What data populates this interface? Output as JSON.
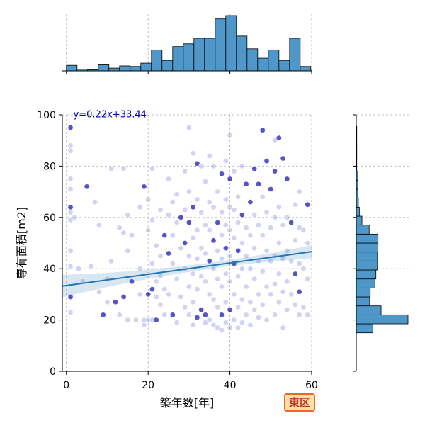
{
  "chart_data": {
    "type": "scatter",
    "xlabel": "築年数[年]",
    "ylabel": "専有面積[m2]",
    "xlim": [
      -1,
      60
    ],
    "ylim": [
      0,
      100
    ],
    "x_ticks": [
      "0",
      "20",
      "40",
      "60"
    ],
    "y_ticks": [
      "0",
      "20",
      "40",
      "60",
      "80",
      "100"
    ],
    "grid": true,
    "regression": {
      "label": "y=0.22x+33.44",
      "slope": 0.22,
      "intercept": 33.44,
      "color": "#1f77b4",
      "band_color": "#1f77b4"
    },
    "point_colors": {
      "light": "#9a9ee0",
      "dark": "#1c1ab8"
    },
    "hist_color": "#4f97c9",
    "top_histogram": {
      "bin_edges": [
        0,
        2.6,
        5.2,
        7.8,
        10.4,
        13,
        15.6,
        18.2,
        20.8,
        23.4,
        26,
        28.6,
        31.2,
        33.8,
        36.4,
        39,
        41.6,
        44.2,
        46.8,
        49.4,
        52,
        54.6,
        57.2,
        59.8
      ],
      "counts": [
        10,
        3,
        2,
        11,
        5,
        9,
        8,
        14,
        38,
        19,
        44,
        49,
        59,
        59,
        94,
        100,
        63,
        40,
        23,
        38,
        19,
        59,
        8
      ]
    },
    "right_histogram": {
      "bin_edges": [
        15,
        18.5,
        22,
        25.5,
        29,
        32.5,
        36,
        39.5,
        43,
        46.5,
        50,
        53.5,
        57,
        60.5,
        64,
        67.5,
        71,
        74.5,
        78,
        81.5,
        85,
        88.5,
        92,
        95.5
      ],
      "counts": [
        32,
        100,
        48,
        26,
        27,
        36,
        38,
        41,
        41,
        42,
        42,
        25,
        11,
        6,
        4,
        3,
        3,
        3,
        1,
        1,
        1,
        1,
        1
      ]
    },
    "points": [
      [
        1,
        95
      ],
      [
        1,
        88
      ],
      [
        1,
        86
      ],
      [
        1,
        75
      ],
      [
        1,
        71
      ],
      [
        1,
        64
      ],
      [
        1,
        62
      ],
      [
        1,
        59
      ],
      [
        1,
        47
      ],
      [
        1,
        41
      ],
      [
        1,
        29
      ],
      [
        1,
        23
      ],
      [
        2,
        60
      ],
      [
        3,
        40
      ],
      [
        4,
        35
      ],
      [
        5,
        72
      ],
      [
        6,
        41
      ],
      [
        7,
        66
      ],
      [
        8,
        57
      ],
      [
        8,
        31
      ],
      [
        9,
        22
      ],
      [
        10,
        36
      ],
      [
        10,
        27
      ],
      [
        11,
        79
      ],
      [
        11,
        43
      ],
      [
        12,
        27
      ],
      [
        13,
        56
      ],
      [
        13,
        22
      ],
      [
        14,
        79
      ],
      [
        14,
        54
      ],
      [
        14,
        29
      ],
      [
        15,
        61
      ],
      [
        15,
        47
      ],
      [
        15,
        20
      ],
      [
        16,
        53
      ],
      [
        16,
        35
      ],
      [
        17,
        20
      ],
      [
        18,
        64
      ],
      [
        18,
        40
      ],
      [
        18,
        30
      ],
      [
        19,
        72
      ],
      [
        19,
        20
      ],
      [
        19,
        18
      ],
      [
        20,
        67
      ],
      [
        20,
        55
      ],
      [
        20,
        30
      ],
      [
        20,
        20
      ],
      [
        21,
        79
      ],
      [
        21,
        59
      ],
      [
        21,
        42
      ],
      [
        21,
        32
      ],
      [
        21,
        20
      ],
      [
        22,
        49
      ],
      [
        22,
        35
      ],
      [
        22,
        29
      ],
      [
        22,
        20
      ],
      [
        23,
        63
      ],
      [
        23,
        45
      ],
      [
        23,
        37
      ],
      [
        23,
        26
      ],
      [
        24,
        53
      ],
      [
        24,
        32
      ],
      [
        24,
        22
      ],
      [
        25,
        75
      ],
      [
        25,
        61
      ],
      [
        25,
        46
      ],
      [
        25,
        30
      ],
      [
        26,
        66
      ],
      [
        26,
        53
      ],
      [
        26,
        42
      ],
      [
        26,
        22
      ],
      [
        27,
        69
      ],
      [
        27,
        58
      ],
      [
        27,
        36
      ],
      [
        27,
        19
      ],
      [
        28,
        60
      ],
      [
        28,
        48
      ],
      [
        28,
        29
      ],
      [
        29,
        78
      ],
      [
        29,
        63
      ],
      [
        29,
        50
      ],
      [
        29,
        40
      ],
      [
        29,
        25
      ],
      [
        30,
        95
      ],
      [
        30,
        70
      ],
      [
        30,
        58
      ],
      [
        30,
        45
      ],
      [
        30,
        33
      ],
      [
        30,
        22
      ],
      [
        31,
        85
      ],
      [
        31,
        64
      ],
      [
        31,
        52
      ],
      [
        31,
        38
      ],
      [
        31,
        27
      ],
      [
        31,
        18
      ],
      [
        32,
        81
      ],
      [
        32,
        67
      ],
      [
        32,
        55
      ],
      [
        32,
        44
      ],
      [
        32,
        32
      ],
      [
        32,
        21
      ],
      [
        33,
        80
      ],
      [
        33,
        62
      ],
      [
        33,
        48
      ],
      [
        33,
        37
      ],
      [
        33,
        24
      ],
      [
        34,
        74
      ],
      [
        34,
        57
      ],
      [
        34,
        46
      ],
      [
        34,
        35
      ],
      [
        34,
        22
      ],
      [
        34,
        19
      ],
      [
        35,
        84
      ],
      [
        35,
        66
      ],
      [
        35,
        55
      ],
      [
        35,
        43
      ],
      [
        35,
        30
      ],
      [
        35,
        20
      ],
      [
        36,
        80
      ],
      [
        36,
        64
      ],
      [
        36,
        51
      ],
      [
        36,
        40
      ],
      [
        36,
        28
      ],
      [
        36,
        18
      ],
      [
        37,
        70
      ],
      [
        37,
        58
      ],
      [
        37,
        47
      ],
      [
        37,
        36
      ],
      [
        37,
        25
      ],
      [
        37,
        17
      ],
      [
        38,
        77
      ],
      [
        38,
        62
      ],
      [
        38,
        53
      ],
      [
        38,
        44
      ],
      [
        38,
        33
      ],
      [
        38,
        22
      ],
      [
        38,
        16
      ],
      [
        39,
        82
      ],
      [
        39,
        67
      ],
      [
        39,
        57
      ],
      [
        39,
        48
      ],
      [
        39,
        38
      ],
      [
        39,
        27
      ],
      [
        39,
        19
      ],
      [
        40,
        92
      ],
      [
        40,
        75
      ],
      [
        40,
        64
      ],
      [
        40,
        55
      ],
      [
        40,
        45
      ],
      [
        40,
        35
      ],
      [
        40,
        24
      ],
      [
        40,
        17
      ],
      [
        41,
        78
      ],
      [
        41,
        63
      ],
      [
        41,
        52
      ],
      [
        41,
        42
      ],
      [
        41,
        30
      ],
      [
        41,
        20
      ],
      [
        42,
        68
      ],
      [
        42,
        58
      ],
      [
        42,
        47
      ],
      [
        42,
        37
      ],
      [
        42,
        25
      ],
      [
        42,
        17
      ],
      [
        43,
        80
      ],
      [
        43,
        61
      ],
      [
        43,
        50
      ],
      [
        43,
        40
      ],
      [
        43,
        28
      ],
      [
        43,
        19
      ],
      [
        44,
        73
      ],
      [
        44,
        56
      ],
      [
        44,
        45
      ],
      [
        44,
        33
      ],
      [
        44,
        22
      ],
      [
        45,
        66
      ],
      [
        45,
        53
      ],
      [
        45,
        40
      ],
      [
        45,
        27
      ],
      [
        45,
        18
      ],
      [
        46,
        79
      ],
      [
        46,
        61
      ],
      [
        46,
        48
      ],
      [
        46,
        36
      ],
      [
        46,
        24
      ],
      [
        47,
        73
      ],
      [
        47,
        57
      ],
      [
        47,
        43
      ],
      [
        47,
        30
      ],
      [
        47,
        21
      ],
      [
        48,
        94
      ],
      [
        48,
        68
      ],
      [
        48,
        53
      ],
      [
        48,
        39
      ],
      [
        48,
        26
      ],
      [
        49,
        82
      ],
      [
        49,
        62
      ],
      [
        49,
        47
      ],
      [
        49,
        33
      ],
      [
        49,
        20
      ],
      [
        50,
        71
      ],
      [
        50,
        56
      ],
      [
        50,
        43
      ],
      [
        50,
        30
      ],
      [
        51,
        90
      ],
      [
        51,
        78
      ],
      [
        51,
        60
      ],
      [
        51,
        45
      ],
      [
        51,
        34
      ],
      [
        51,
        22
      ],
      [
        52,
        91
      ],
      [
        52,
        64
      ],
      [
        52,
        50
      ],
      [
        52,
        38
      ],
      [
        52,
        27
      ],
      [
        53,
        83
      ],
      [
        53,
        57
      ],
      [
        53,
        44
      ],
      [
        53,
        31
      ],
      [
        53,
        17
      ],
      [
        54,
        75
      ],
      [
        54,
        60
      ],
      [
        54,
        47
      ],
      [
        54,
        35
      ],
      [
        54,
        24
      ],
      [
        55,
        58
      ],
      [
        55,
        43
      ],
      [
        55,
        30
      ],
      [
        56,
        65
      ],
      [
        56,
        51
      ],
      [
        56,
        38
      ],
      [
        56,
        26
      ],
      [
        57,
        70
      ],
      [
        57,
        56
      ],
      [
        57,
        42
      ],
      [
        57,
        31
      ],
      [
        57,
        22
      ],
      [
        58,
        55
      ],
      [
        58,
        40
      ],
      [
        58,
        25
      ],
      [
        59,
        65
      ],
      [
        59,
        50
      ],
      [
        59,
        36
      ],
      [
        59,
        22
      ]
    ]
  },
  "badge": {
    "label": "東区",
    "bg": "#ffe2a8",
    "border": "#f0652a",
    "text": "#c0392b"
  }
}
